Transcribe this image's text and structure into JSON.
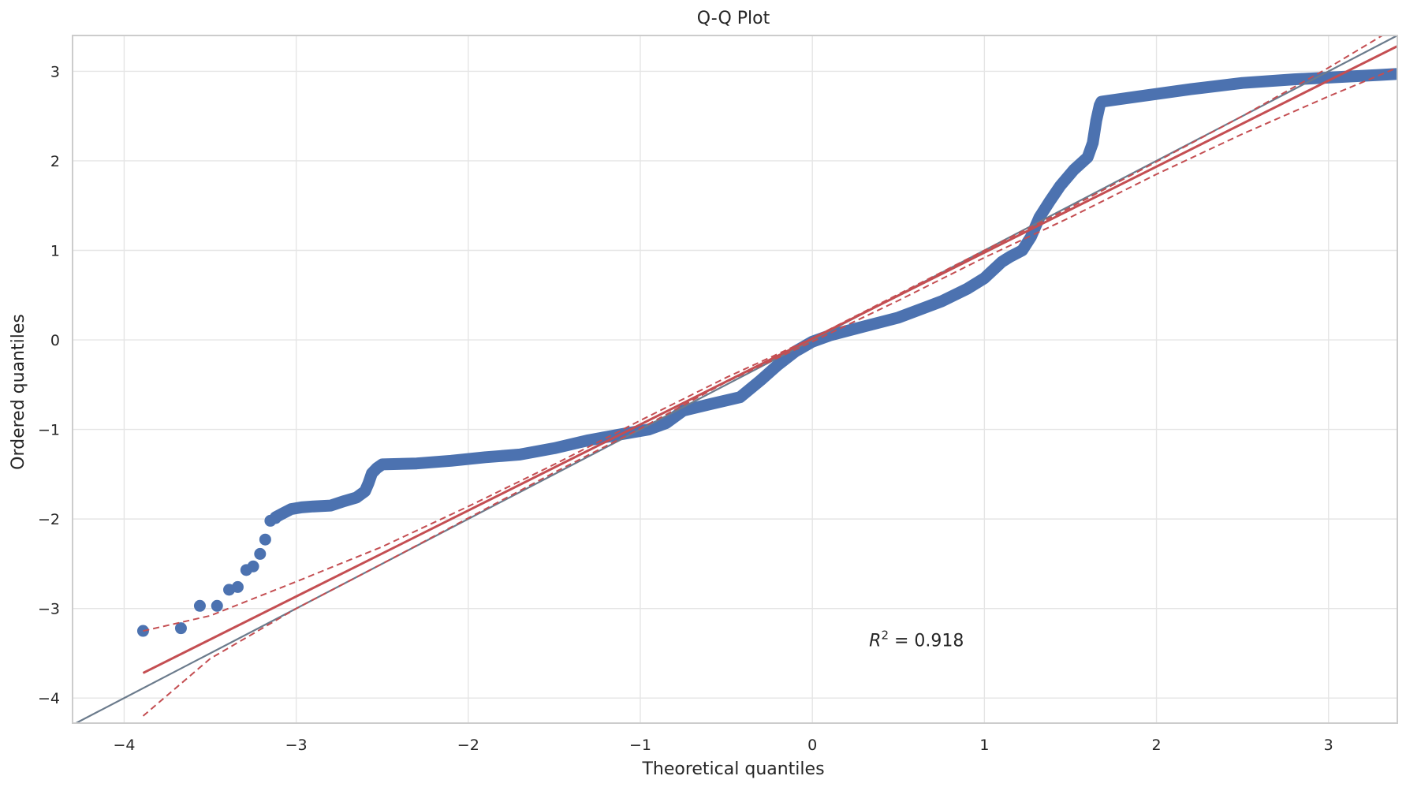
{
  "chart_data": {
    "type": "scatter",
    "title": "Q-Q Plot",
    "xlabel": "Theoretical quantiles",
    "ylabel": "Ordered quantiles",
    "xlim": [
      -4.3,
      3.4
    ],
    "ylim": [
      -4.28,
      3.4
    ],
    "xticks": [
      -4,
      -3,
      -2,
      -1,
      0,
      1,
      2,
      3
    ],
    "xtick_labels": [
      "−4",
      "−3",
      "−2",
      "−1",
      "0",
      "1",
      "2",
      "3"
    ],
    "yticks": [
      -4,
      -3,
      -2,
      -1,
      0,
      1,
      2,
      3
    ],
    "ytick_labels": [
      "−4",
      "−3",
      "−2",
      "−1",
      "0",
      "1",
      "2",
      "3"
    ],
    "grid": true,
    "annotation": {
      "text_prefix": "R",
      "text_sup": "2",
      "text_suffix": " = 0.918",
      "x": 0.33,
      "y": -3.42
    },
    "colors": {
      "points": "#4c72b0",
      "fit_line": "#c44e52",
      "identity_line": "#6b7b8c",
      "grid": "#e5e5e5",
      "frame": "#cccccc",
      "text": "#262626"
    },
    "series": [
      {
        "kind": "points",
        "outlier_points": [
          {
            "x": -3.89,
            "y": -3.25
          },
          {
            "x": -3.67,
            "y": -3.22
          },
          {
            "x": -3.56,
            "y": -2.97
          },
          {
            "x": -3.46,
            "y": -2.97
          },
          {
            "x": -3.39,
            "y": -2.79
          },
          {
            "x": -3.34,
            "y": -2.76
          },
          {
            "x": -3.29,
            "y": -2.57
          },
          {
            "x": -3.25,
            "y": -2.53
          },
          {
            "x": -3.21,
            "y": -2.39
          },
          {
            "x": -3.18,
            "y": -2.23
          },
          {
            "x": -3.15,
            "y": -2.02
          },
          {
            "x": -3.12,
            "y": -1.99
          }
        ],
        "curve": [
          {
            "x": -3.12,
            "y": -1.98
          },
          {
            "x": -3.08,
            "y": -1.94
          },
          {
            "x": -3.03,
            "y": -1.89
          },
          {
            "x": -2.97,
            "y": -1.87
          },
          {
            "x": -2.9,
            "y": -1.86
          },
          {
            "x": -2.8,
            "y": -1.85
          },
          {
            "x": -2.72,
            "y": -1.8
          },
          {
            "x": -2.65,
            "y": -1.76
          },
          {
            "x": -2.6,
            "y": -1.69
          },
          {
            "x": -2.58,
            "y": -1.6
          },
          {
            "x": -2.56,
            "y": -1.49
          },
          {
            "x": -2.53,
            "y": -1.43
          },
          {
            "x": -2.5,
            "y": -1.39
          },
          {
            "x": -2.3,
            "y": -1.38
          },
          {
            "x": -2.1,
            "y": -1.35
          },
          {
            "x": -1.9,
            "y": -1.31
          },
          {
            "x": -1.7,
            "y": -1.28
          },
          {
            "x": -1.5,
            "y": -1.21
          },
          {
            "x": -1.3,
            "y": -1.12
          },
          {
            "x": -1.1,
            "y": -1.05
          },
          {
            "x": -0.95,
            "y": -1.0
          },
          {
            "x": -0.85,
            "y": -0.93
          },
          {
            "x": -0.75,
            "y": -0.79
          },
          {
            "x": -0.6,
            "y": -0.72
          },
          {
            "x": -0.42,
            "y": -0.64
          },
          {
            "x": -0.3,
            "y": -0.45
          },
          {
            "x": -0.2,
            "y": -0.28
          },
          {
            "x": -0.1,
            "y": -0.13
          },
          {
            "x": 0.0,
            "y": -0.02
          },
          {
            "x": 0.1,
            "y": 0.05
          },
          {
            "x": 0.3,
            "y": 0.15
          },
          {
            "x": 0.5,
            "y": 0.25
          },
          {
            "x": 0.75,
            "y": 0.43
          },
          {
            "x": 0.9,
            "y": 0.57
          },
          {
            "x": 1.0,
            "y": 0.69
          },
          {
            "x": 1.05,
            "y": 0.78
          },
          {
            "x": 1.1,
            "y": 0.87
          },
          {
            "x": 1.15,
            "y": 0.93
          },
          {
            "x": 1.22,
            "y": 1.0
          },
          {
            "x": 1.27,
            "y": 1.15
          },
          {
            "x": 1.32,
            "y": 1.37
          },
          {
            "x": 1.38,
            "y": 1.55
          },
          {
            "x": 1.44,
            "y": 1.72
          },
          {
            "x": 1.52,
            "y": 1.9
          },
          {
            "x": 1.6,
            "y": 2.04
          },
          {
            "x": 1.63,
            "y": 2.2
          },
          {
            "x": 1.65,
            "y": 2.45
          },
          {
            "x": 1.67,
            "y": 2.62
          },
          {
            "x": 1.68,
            "y": 2.66
          },
          {
            "x": 1.9,
            "y": 2.72
          },
          {
            "x": 2.2,
            "y": 2.8
          },
          {
            "x": 2.5,
            "y": 2.87
          },
          {
            "x": 2.8,
            "y": 2.91
          },
          {
            "x": 3.1,
            "y": 2.94
          },
          {
            "x": 3.3,
            "y": 2.96
          },
          {
            "x": 3.4,
            "y": 2.97
          }
        ]
      },
      {
        "kind": "identity_line",
        "x": [
          -4.3,
          3.4
        ],
        "y": [
          -4.3,
          3.4
        ]
      },
      {
        "kind": "fit_line",
        "x": [
          -3.89,
          3.4
        ],
        "y": [
          -3.72,
          3.28
        ]
      },
      {
        "kind": "confidence_upper",
        "points": [
          {
            "x": -3.89,
            "y": -3.25
          },
          {
            "x": -3.5,
            "y": -3.08
          },
          {
            "x": -3.0,
            "y": -2.7
          },
          {
            "x": -2.5,
            "y": -2.31
          },
          {
            "x": -2.0,
            "y": -1.86
          },
          {
            "x": -1.5,
            "y": -1.39
          },
          {
            "x": -1.0,
            "y": -0.9
          },
          {
            "x": -0.5,
            "y": -0.42
          },
          {
            "x": 0.0,
            "y": 0.02
          },
          {
            "x": 0.5,
            "y": 0.51
          },
          {
            "x": 1.0,
            "y": 1.0
          },
          {
            "x": 1.5,
            "y": 1.48
          },
          {
            "x": 2.0,
            "y": 1.99
          },
          {
            "x": 2.5,
            "y": 2.5
          },
          {
            "x": 3.0,
            "y": 3.04
          },
          {
            "x": 3.4,
            "y": 3.5
          }
        ]
      },
      {
        "kind": "confidence_lower",
        "points": [
          {
            "x": -3.89,
            "y": -4.2
          },
          {
            "x": -3.5,
            "y": -3.56
          },
          {
            "x": -3.0,
            "y": -3.0
          },
          {
            "x": -2.5,
            "y": -2.5
          },
          {
            "x": -2.0,
            "y": -1.99
          },
          {
            "x": -1.5,
            "y": -1.48
          },
          {
            "x": -1.0,
            "y": -0.99
          },
          {
            "x": -0.5,
            "y": -0.47
          },
          {
            "x": 0.0,
            "y": -0.02
          },
          {
            "x": 0.5,
            "y": 0.44
          },
          {
            "x": 1.0,
            "y": 0.92
          },
          {
            "x": 1.5,
            "y": 1.37
          },
          {
            "x": 2.0,
            "y": 1.85
          },
          {
            "x": 2.5,
            "y": 2.3
          },
          {
            "x": 3.0,
            "y": 2.72
          },
          {
            "x": 3.4,
            "y": 3.04
          }
        ]
      }
    ]
  }
}
